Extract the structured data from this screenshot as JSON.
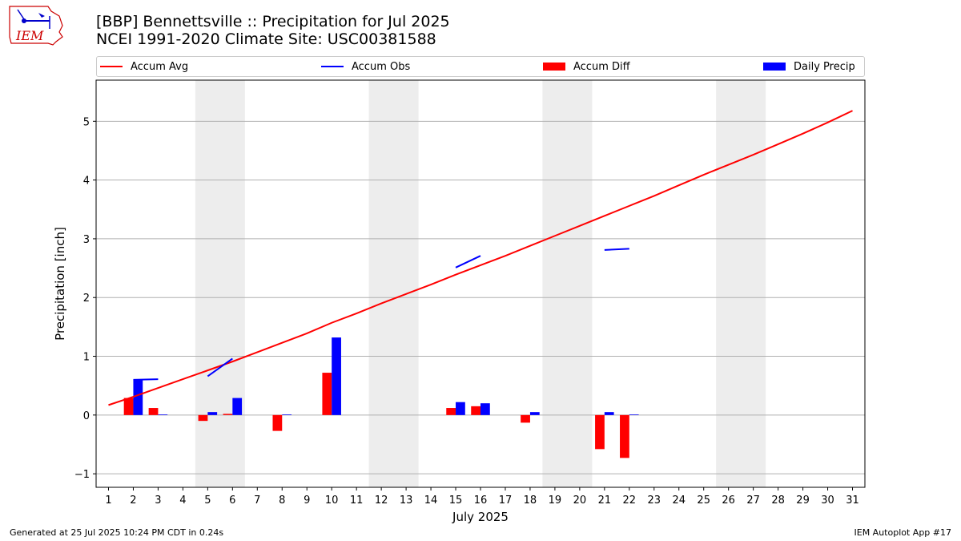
{
  "header": {
    "title_line1": "[BBP] Bennettsville :: Precipitation for Jul 2025",
    "title_line2": "NCEI 1991-2020 Climate Site: USC00381588",
    "logo_text": "IEM"
  },
  "legend": [
    {
      "label": "Accum Avg",
      "color": "#ff0000",
      "kind": "line"
    },
    {
      "label": "Accum Obs",
      "color": "#0000ff",
      "kind": "line"
    },
    {
      "label": "Accum Diff",
      "color": "#ff0000",
      "kind": "patch"
    },
    {
      "label": "Daily Precip",
      "color": "#0000ff",
      "kind": "patch"
    }
  ],
  "footer": {
    "left": "Generated at 25 Jul 2025 10:24 PM CDT in 0.24s",
    "right": "IEM Autoplot App #17"
  },
  "chart_data": {
    "type": "bar",
    "xlabel": "July 2025",
    "ylabel": "Precipitation [inch]",
    "xlim": [
      0.5,
      31.5
    ],
    "ylim": [
      -1.23,
      5.7
    ],
    "y_ticks": [
      -1,
      0,
      1,
      2,
      3,
      4,
      5
    ],
    "x_ticks": [
      1,
      2,
      3,
      4,
      5,
      6,
      7,
      8,
      9,
      10,
      11,
      12,
      13,
      14,
      15,
      16,
      17,
      18,
      19,
      20,
      21,
      22,
      23,
      24,
      25,
      26,
      27,
      28,
      29,
      30,
      31
    ],
    "grid": "horizontal",
    "weekend_shading": [
      [
        4.5,
        6.5
      ],
      [
        11.5,
        13.5
      ],
      [
        18.5,
        20.5
      ],
      [
        25.5,
        27.5
      ]
    ],
    "series": [
      {
        "name": "Accum Avg",
        "kind": "line",
        "color": "#ff0000",
        "x": [
          1,
          2,
          3,
          4,
          5,
          6,
          7,
          8,
          9,
          10,
          11,
          12,
          13,
          14,
          15,
          16,
          17,
          18,
          19,
          20,
          21,
          22,
          23,
          24,
          25,
          26,
          27,
          28,
          29,
          30,
          31
        ],
        "values": [
          0.17,
          0.31,
          0.46,
          0.61,
          0.76,
          0.91,
          1.07,
          1.23,
          1.39,
          1.57,
          1.73,
          1.9,
          2.06,
          2.22,
          2.39,
          2.55,
          2.71,
          2.88,
          3.05,
          3.22,
          3.39,
          3.56,
          3.73,
          3.91,
          4.09,
          4.26,
          4.43,
          4.61,
          4.79,
          4.98,
          5.18
        ]
      },
      {
        "name": "Accum Obs",
        "kind": "line",
        "color": "#0000ff",
        "segments": [
          {
            "x": [
              2,
              3
            ],
            "values": [
              0.6,
              0.61
            ]
          },
          {
            "x": [
              5,
              6
            ],
            "values": [
              0.66,
              0.96
            ]
          },
          {
            "x": [
              15,
              16
            ],
            "values": [
              2.51,
              2.71
            ]
          },
          {
            "x": [
              21,
              22
            ],
            "values": [
              2.81,
              2.83
            ]
          }
        ]
      },
      {
        "name": "Accum Diff",
        "kind": "bar",
        "color": "#ff0000",
        "x": [
          2,
          3,
          5,
          6,
          8,
          10,
          15,
          16,
          18,
          21,
          22
        ],
        "values": [
          0.29,
          0.12,
          -0.1,
          0.02,
          -0.27,
          0.72,
          0.12,
          0.15,
          -0.13,
          -0.58,
          -0.73
        ]
      },
      {
        "name": "Daily Precip",
        "kind": "bar",
        "color": "#0000ff",
        "x": [
          2,
          3,
          5,
          6,
          8,
          10,
          15,
          16,
          18,
          21,
          22
        ],
        "values": [
          0.6,
          0.01,
          0.05,
          0.29,
          0.01,
          1.32,
          0.22,
          0.2,
          0.05,
          0.05,
          0.01
        ]
      }
    ]
  }
}
